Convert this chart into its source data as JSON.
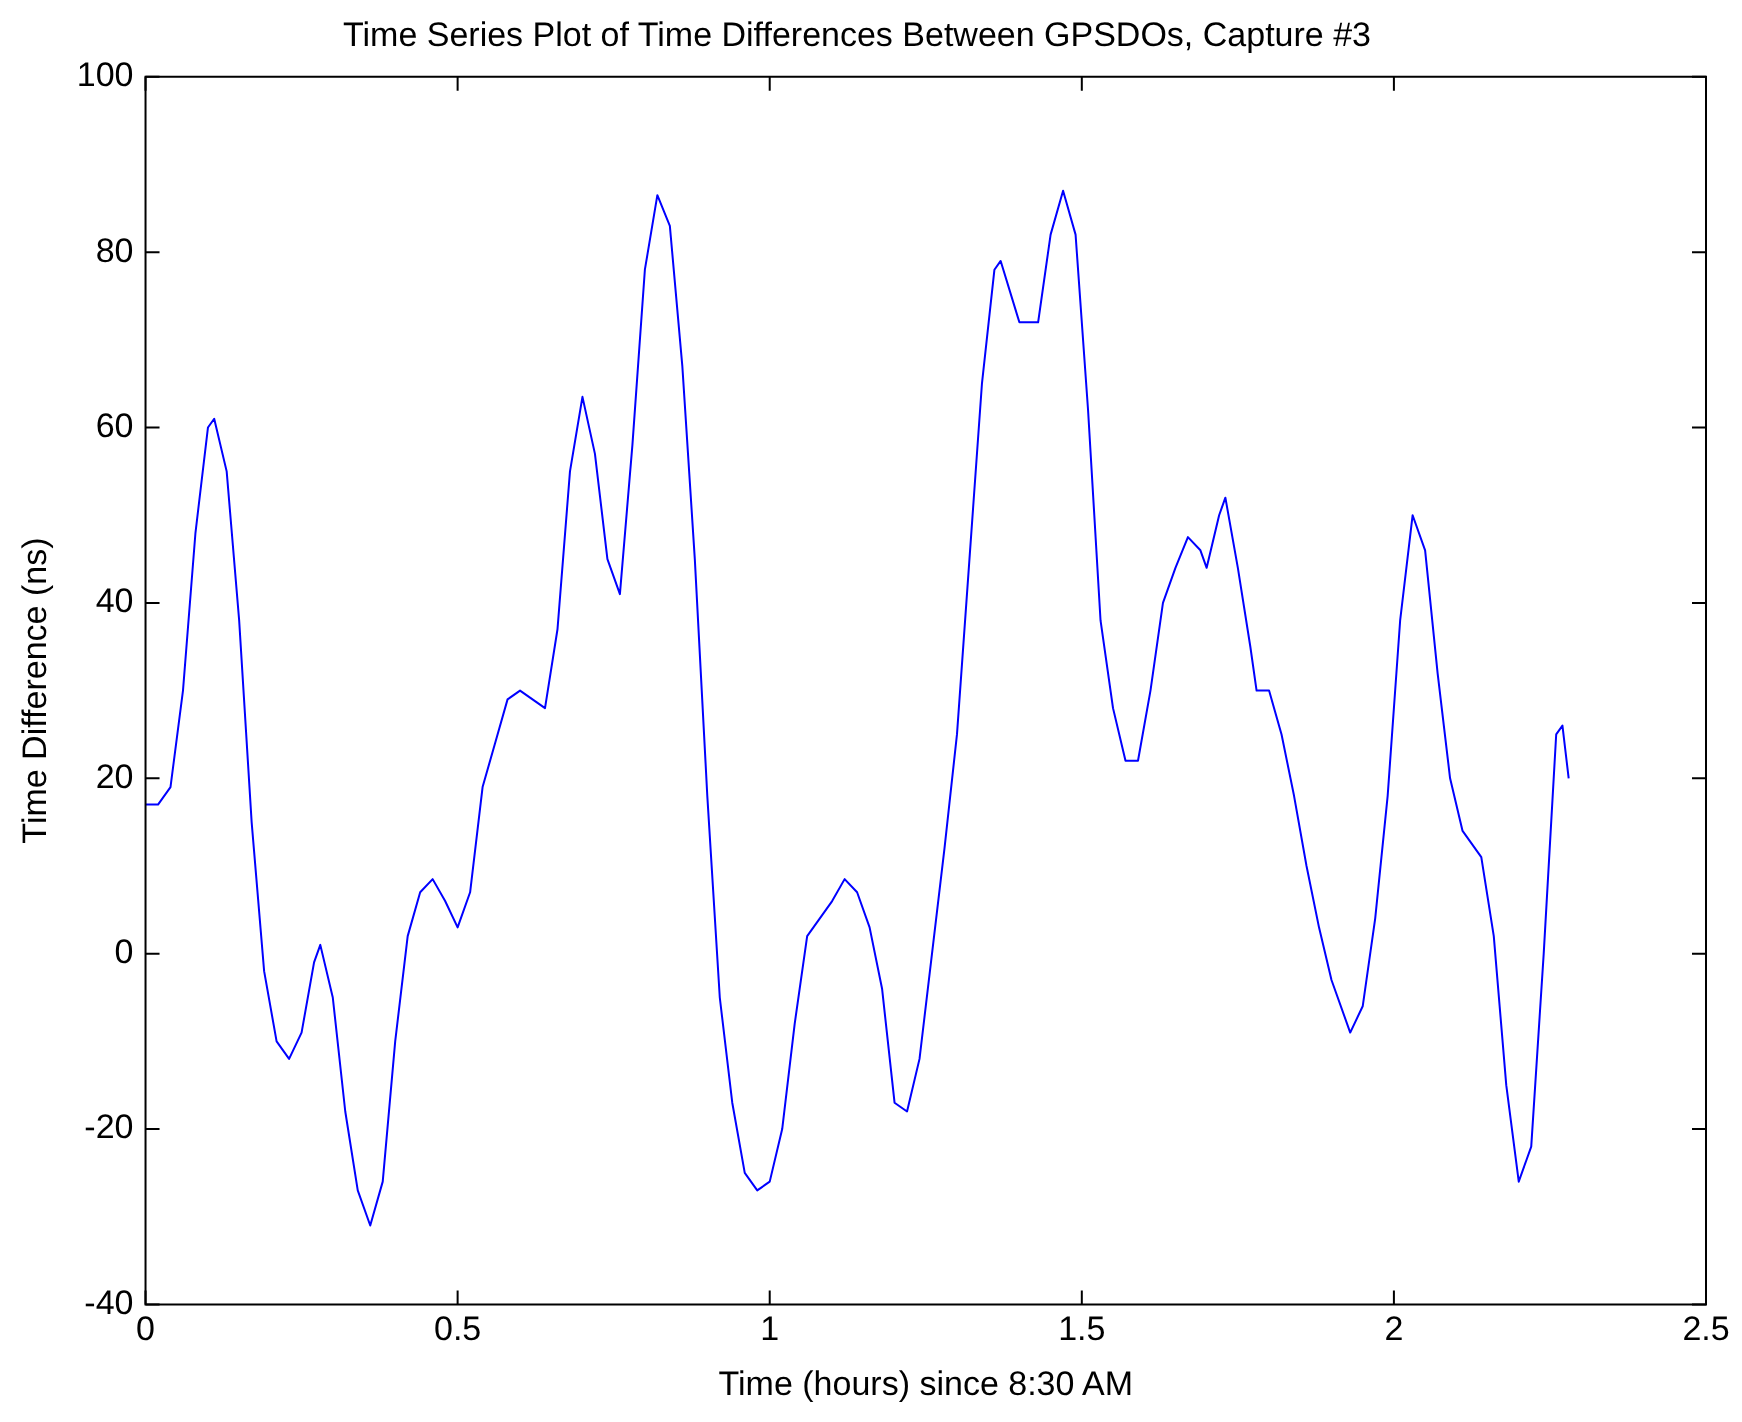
{
  "chart_data": {
    "type": "line",
    "title": "Time Series Plot of Time Differences Between GPSDOs, Capture #3",
    "xlabel": "Time (hours) since 8:30 AM",
    "ylabel": "Time Difference (ns)",
    "xlim": [
      0,
      2.5
    ],
    "xticks": [
      0,
      0.5,
      1,
      1.5,
      2,
      2.5
    ],
    "ylim": [
      -40,
      100
    ],
    "yticks": [
      -40,
      -20,
      0,
      20,
      40,
      60,
      80,
      100
    ],
    "grid": false,
    "legend": false,
    "marker": "none",
    "line_style": "solid",
    "series": [
      {
        "color": "#0000ff",
        "x": [
          0,
          0.02,
          0.04,
          0.06,
          0.08,
          0.1,
          0.11,
          0.13,
          0.15,
          0.17,
          0.19,
          0.21,
          0.23,
          0.25,
          0.27,
          0.28,
          0.3,
          0.32,
          0.34,
          0.36,
          0.38,
          0.4,
          0.42,
          0.44,
          0.46,
          0.48,
          0.5,
          0.52,
          0.54,
          0.56,
          0.58,
          0.6,
          0.64,
          0.66,
          0.68,
          0.7,
          0.72,
          0.74,
          0.76,
          0.78,
          0.8,
          0.82,
          0.84,
          0.86,
          0.88,
          0.9,
          0.92,
          0.94,
          0.96,
          0.98,
          1.0,
          1.02,
          1.04,
          1.06,
          1.08,
          1.1,
          1.12,
          1.14,
          1.16,
          1.18,
          1.2,
          1.22,
          1.24,
          1.26,
          1.28,
          1.3,
          1.32,
          1.34,
          1.36,
          1.37,
          1.4,
          1.43,
          1.45,
          1.47,
          1.49,
          1.51,
          1.53,
          1.55,
          1.57,
          1.59,
          1.61,
          1.63,
          1.65,
          1.67,
          1.69,
          1.7,
          1.72,
          1.73,
          1.75,
          1.77,
          1.78,
          1.8,
          1.82,
          1.84,
          1.86,
          1.88,
          1.9,
          1.93,
          1.95,
          1.97,
          1.99,
          2.01,
          2.03,
          2.05,
          2.07,
          2.09,
          2.11,
          2.14,
          2.16,
          2.18,
          2.2,
          2.22,
          2.24,
          2.26,
          2.27,
          2.28
        ],
        "values": [
          17,
          17,
          19,
          30,
          48,
          60,
          61,
          55,
          38,
          15,
          -2,
          -10,
          -12,
          -9,
          -1,
          1,
          -5,
          -18,
          -27,
          -31,
          -26,
          -10,
          2,
          7,
          8.5,
          6,
          3,
          7,
          19,
          24,
          29,
          30,
          28,
          37,
          55,
          63.5,
          57,
          45,
          41,
          58,
          78,
          86.5,
          83,
          67,
          45,
          18,
          -5,
          -17,
          -25,
          -27,
          -26,
          -20,
          -8,
          2,
          4,
          6,
          8.5,
          7,
          3,
          -4,
          -17,
          -18,
          -12,
          0,
          12,
          25,
          45,
          65,
          78,
          79,
          72,
          72,
          82,
          87,
          82,
          62,
          38,
          28,
          22,
          22,
          30,
          40,
          44,
          47.5,
          46,
          44,
          50,
          52,
          44,
          35,
          30,
          30,
          25,
          18,
          10,
          3,
          -3,
          -9,
          -6,
          4,
          18,
          38,
          50,
          46,
          32,
          20,
          14,
          11,
          2,
          -15,
          -26,
          -22,
          0,
          25,
          26,
          20
        ]
      }
    ]
  }
}
